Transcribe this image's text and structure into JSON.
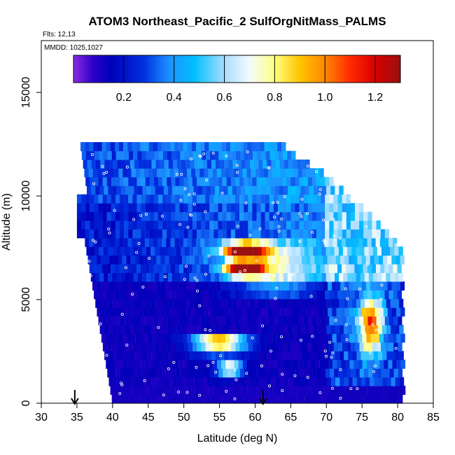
{
  "chart_data": {
    "type": "heatmap",
    "title": "ATOM3 Northeast_Pacific_2 SulfOrgNitMass_PALMS",
    "annotations": {
      "flights": "Flts: 12,13",
      "dates": "MMDD: 1025,1027"
    },
    "xlabel": "Latitude (deg N)",
    "ylabel": "Altitude (m)",
    "xlim": [
      30,
      85
    ],
    "ylim": [
      0,
      17500
    ],
    "x_ticks": [
      30,
      35,
      40,
      45,
      50,
      55,
      60,
      65,
      70,
      75,
      80,
      85
    ],
    "x_tick_labels": [
      "30",
      "35",
      "40",
      "45",
      "50",
      "55",
      "60",
      "65",
      "70",
      "75",
      "80",
      "85"
    ],
    "y_ticks": [
      0,
      5000,
      10000,
      15000
    ],
    "y_tick_labels": [
      "0",
      "5000",
      "10000",
      "15000"
    ],
    "colorbar": {
      "range": [
        0,
        1.3
      ],
      "ticks": [
        0.2,
        0.4,
        0.6,
        0.8,
        1.0,
        1.2
      ],
      "tick_labels": [
        "0.2",
        "0.4",
        "0.6",
        "0.8",
        "1.0",
        "1.2"
      ],
      "stops": [
        {
          "v": 0.0,
          "color": "#8a2be2"
        },
        {
          "v": 0.08,
          "color": "#2a00c8"
        },
        {
          "v": 0.15,
          "color": "#0000b8"
        },
        {
          "v": 0.28,
          "color": "#0030e0"
        },
        {
          "v": 0.38,
          "color": "#1e90ff"
        },
        {
          "v": 0.48,
          "color": "#00bfff"
        },
        {
          "v": 0.6,
          "color": "#a8dcff"
        },
        {
          "v": 0.7,
          "color": "#f2fbff"
        },
        {
          "v": 0.8,
          "color": "#ffff80"
        },
        {
          "v": 0.9,
          "color": "#ffc400"
        },
        {
          "v": 1.0,
          "color": "#ff8800"
        },
        {
          "v": 1.1,
          "color": "#ff2a00"
        },
        {
          "v": 1.2,
          "color": "#d80000"
        },
        {
          "v": 1.3,
          "color": "#9b1010"
        }
      ]
    },
    "latitude_markers": [
      34.7,
      61.1
    ],
    "grid": false,
    "legend": "colorbar-top"
  }
}
